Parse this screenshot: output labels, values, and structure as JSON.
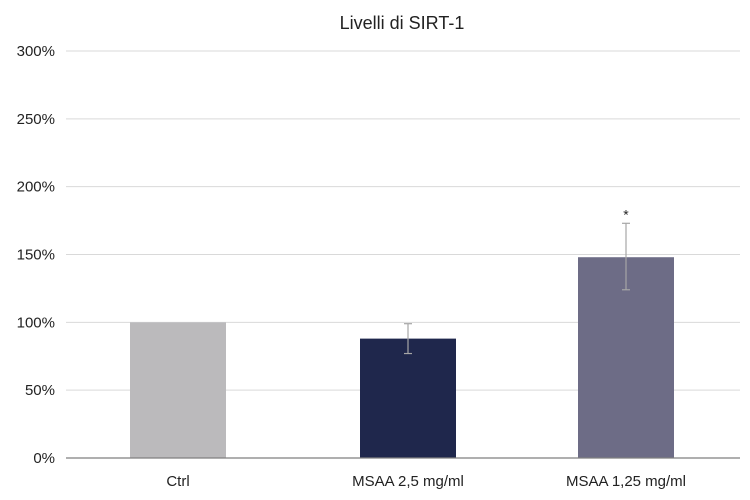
{
  "chart_data": {
    "type": "bar",
    "title": "Livelli di SIRT-1",
    "xlabel": "",
    "ylabel": "",
    "categories": [
      "Ctrl",
      "MSAA 2,5 mg/ml",
      "MSAA 1,25 mg/ml"
    ],
    "values": [
      100,
      88,
      148
    ],
    "error_bars": [
      {
        "low": null,
        "high": null
      },
      {
        "low": 77,
        "high": 99
      },
      {
        "low": 124,
        "high": 173
      }
    ],
    "bar_colors": [
      "#bbbabc",
      "#1f274c",
      "#6d6c86"
    ],
    "annotations": [
      "",
      "",
      "*"
    ],
    "ylim": [
      0,
      300
    ],
    "yticks": [
      0,
      50,
      100,
      150,
      200,
      250,
      300
    ],
    "ytick_labels": [
      "0%",
      "50%",
      "100%",
      "150%",
      "200%",
      "250%",
      "300%"
    ],
    "grid": true,
    "legend": "none"
  }
}
